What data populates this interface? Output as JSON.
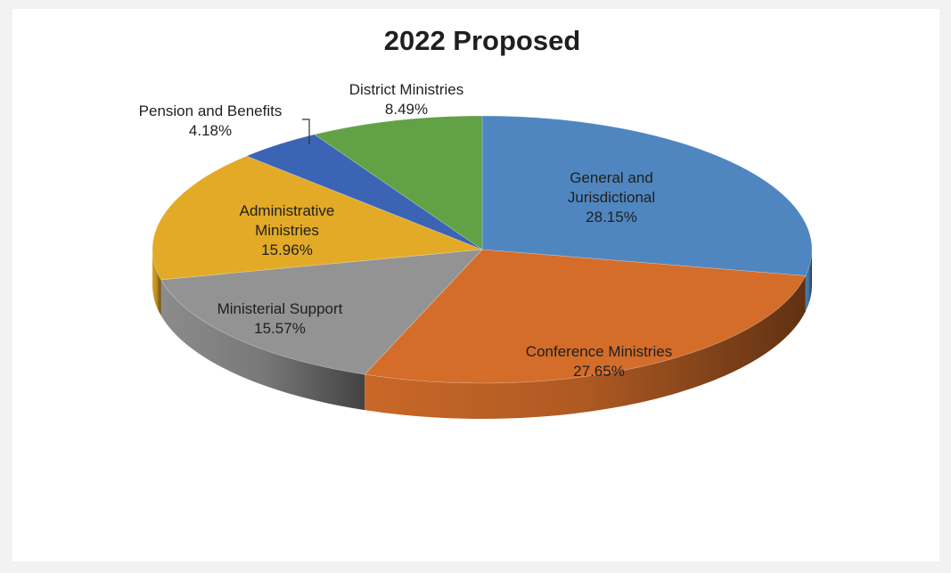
{
  "chart_data": {
    "type": "pie",
    "variant": "3d",
    "title": "2022 Proposed",
    "slices": [
      {
        "label": [
          "General and",
          "Jurisdictional"
        ],
        "percent": "28.15%",
        "value": 28.15,
        "color": "#4f86c0"
      },
      {
        "label": [
          "Conference Ministries"
        ],
        "percent": "27.65%",
        "value": 27.65,
        "color": "#d46d2a"
      },
      {
        "label": [
          "Ministerial Support"
        ],
        "percent": "15.57%",
        "value": 15.57,
        "color": "#939393"
      },
      {
        "label": [
          "Administrative",
          "Ministries"
        ],
        "percent": "15.96%",
        "value": 15.96,
        "color": "#e2aa27"
      },
      {
        "label": [
          "Pension and Benefits"
        ],
        "percent": "4.18%",
        "value": 4.18,
        "color": "#3c64b4"
      },
      {
        "label": [
          "District Ministries"
        ],
        "percent": "8.49%",
        "value": 8.49,
        "color": "#62a146"
      }
    ]
  }
}
